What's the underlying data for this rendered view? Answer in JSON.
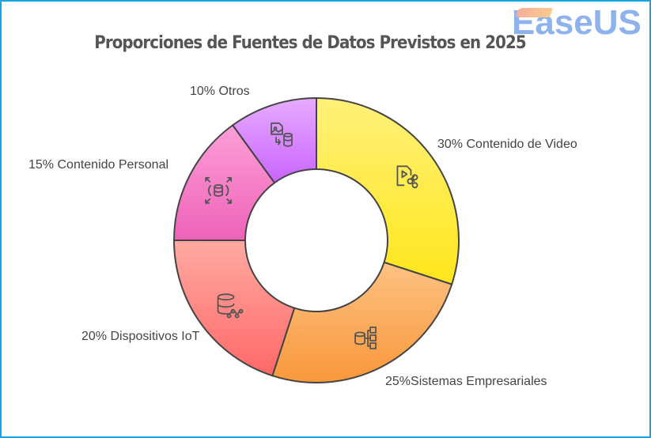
{
  "chart_data": {
    "type": "pie",
    "donut": true,
    "title": "Proporciones de Fuentes de Datos Previstos en 2025",
    "slices": [
      {
        "label": "Contenido de Video",
        "value": 30,
        "value_label": "30%",
        "color_top": "#fff17a",
        "color_bottom": "#ffe61a",
        "icon": "video-share-icon"
      },
      {
        "label": "Sistemas Empresariales",
        "value": 25,
        "value_label": "25%",
        "color_top": "#fdc283",
        "color_bottom": "#f9973a",
        "icon": "database-hierarchy-icon"
      },
      {
        "label": "Dispositivos IoT",
        "value": 20,
        "value_label": "20%",
        "color_top": "#ffaaa2",
        "color_bottom": "#ff6868",
        "icon": "database-network-icon"
      },
      {
        "label": "Contenido Personal",
        "value": 15,
        "value_label": "15%",
        "color_top": "#fd9fd8",
        "color_bottom": "#ee62b8",
        "icon": "database-expand-icon"
      },
      {
        "label": "Otros",
        "value": 10,
        "value_label": "10%",
        "color_top": "#e8abff",
        "color_bottom": "#c964ff",
        "icon": "image-to-database-icon"
      }
    ]
  },
  "watermark": "EaseUS"
}
